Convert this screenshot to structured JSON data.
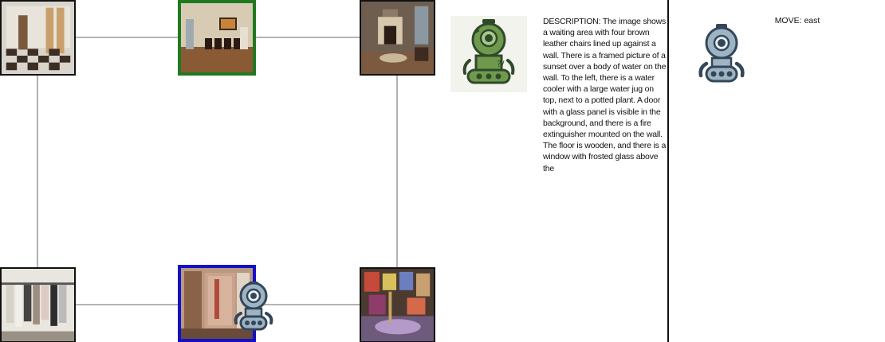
{
  "panel": {
    "description_label": "DESCRIPTION:",
    "description_text": "The image shows a waiting area with four brown leather chairs lined up against a wall. There is a framed picture of a sunset over a body of water on the wall. To the left, there is a water cooler with a large water jug on top, next to a potted plant. A door with a glass panel is visible in the background, and there is a fire extinguisher mounted on the wall. The floor is wooden, and there is a window with frosted glass above the",
    "move_label": "MOVE:",
    "move_value": "east"
  },
  "graph": {
    "nodes": [
      {
        "id": "hall-checker-floor",
        "role": "normal"
      },
      {
        "id": "waiting-room",
        "role": "goal"
      },
      {
        "id": "living-room-fireplace",
        "role": "normal"
      },
      {
        "id": "closet-clothes",
        "role": "normal"
      },
      {
        "id": "bathroom-shower",
        "role": "current"
      },
      {
        "id": "art-studio",
        "role": "normal"
      }
    ],
    "edges": [
      [
        "hall-checker-floor",
        "waiting-room"
      ],
      [
        "waiting-room",
        "living-room-fireplace"
      ],
      [
        "hall-checker-floor",
        "closet-clothes"
      ],
      [
        "living-room-fireplace",
        "art-studio"
      ],
      [
        "closet-clothes",
        "bathroom-shower"
      ],
      [
        "bathroom-shower",
        "art-studio"
      ]
    ]
  },
  "colors": {
    "goal_border": "#1f7a1f",
    "current_border": "#1410c8",
    "edge": "#888888",
    "robot_body": "#9fb4c2",
    "robot_outline": "#33475b",
    "thinking_robot_body": "#6f9a4d"
  },
  "icons": {
    "agent": "robot-icon",
    "thinking": "thinking-robot-icon"
  }
}
